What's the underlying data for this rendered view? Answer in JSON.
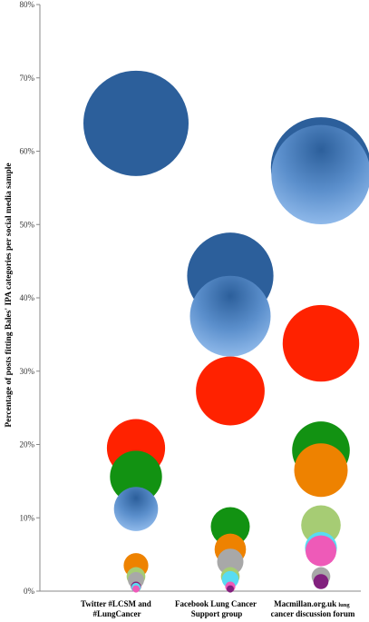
{
  "chart_data": {
    "type": "scatter",
    "title": "",
    "ylabel": "Percentage of posts fitting Bales' IPA categories per social media sample",
    "xlabel": "",
    "ylim": [
      0,
      80
    ],
    "y_ticks": [
      "0%",
      "10%",
      "20%",
      "30%",
      "40%",
      "50%",
      "60%",
      "70%",
      "80%"
    ],
    "grid": false,
    "categories": [
      {
        "line1": "Twitter #LCSM and",
        "line2": "#LungCancer"
      },
      {
        "line1": "Facebook Lung Cancer",
        "line2": "Support group"
      },
      {
        "line1": "Macmillan.org.uk",
        "line1_small": "lung",
        "line2": "cancer discussion forum"
      }
    ],
    "colors": {
      "dark-blue": "#2c5f9b",
      "light-blue": "#6e9fd8",
      "red": "#ff2200",
      "green": "#129212",
      "orange": "#ee8200",
      "light-green": "#a6cc74",
      "grey": "#a8a8a8",
      "cyan": "#58dcf2",
      "pink": "#ee5ab8",
      "purple": "#82207e"
    },
    "series": [
      {
        "color": "dark-blue",
        "values": [
          63.8,
          43.0,
          57.8
        ]
      },
      {
        "color": "light-blue",
        "values": [
          11.2,
          37.5,
          56.8
        ]
      },
      {
        "color": "red",
        "values": [
          19.5,
          27.3,
          33.8
        ]
      },
      {
        "color": "green",
        "values": [
          15.6,
          8.8,
          19.2
        ]
      },
      {
        "color": "orange",
        "values": [
          3.5,
          5.7,
          16.5
        ]
      },
      {
        "color": "light-green",
        "values": [
          2.0,
          2.0,
          9.0
        ]
      },
      {
        "color": "grey",
        "values": [
          1.5,
          4.0,
          2.0
        ]
      },
      {
        "color": "cyan",
        "values": [
          0.5,
          1.6,
          5.9
        ]
      },
      {
        "color": "pink",
        "values": [
          0.3,
          0.6,
          5.5
        ]
      },
      {
        "color": "purple",
        "values": [
          0.6,
          0.3,
          1.3
        ]
      }
    ]
  }
}
